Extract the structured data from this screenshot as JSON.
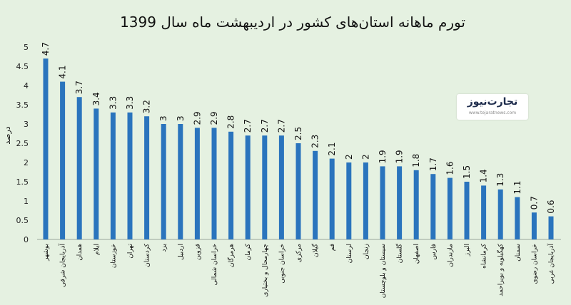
{
  "colors": {
    "background": "#e5f1e1",
    "bar": "#2a74bd",
    "text": "#111111",
    "brand_accent": "#e23a3a"
  },
  "logo": {
    "name": "تجارت‌نیوز",
    "url": "www.tejaratnews.com"
  },
  "chart_data": {
    "type": "bar",
    "title": "تورم ماهانه استان‌های کشور در اردیبهشت ماه سال 1399",
    "xlabel": "",
    "ylabel": "درصد",
    "ylim": [
      0,
      5
    ],
    "yticks": [
      "0",
      "0.5",
      "1",
      "1.5",
      "2",
      "2.5",
      "3",
      "3.5",
      "4",
      "4.5",
      "5"
    ],
    "grid": false,
    "legend": "none",
    "categories": [
      "بوشهر",
      "آذربایجان شرقی",
      "همدان",
      "ایلام",
      "خوزستان",
      "تهران",
      "کردستان",
      "یزد",
      "اردبیل",
      "قزوین",
      "خراسان شمالی",
      "هرمزگان",
      "کرمان",
      "چهارمحال و بختیاری",
      "خراسان جنوبی",
      "مرکزی",
      "گیلان",
      "قم",
      "لرستان",
      "زنجان",
      "سیستان و بلوچستان",
      "گلستان",
      "اصفهان",
      "فارس",
      "مازندران",
      "البرز",
      "کرمانشاه",
      "کهگیلویه و بویراحمد",
      "سمنان",
      "خراسان رضوی",
      "آذربایجان غربی"
    ],
    "value_labels": [
      "4.7",
      "4.1",
      "3.7",
      "3.4",
      "3.3",
      "3.3",
      "3.2",
      "3",
      "3",
      "2.9",
      "2.9",
      "2.8",
      "2.7",
      "2.7",
      "2.7",
      "2.5",
      "2.3",
      "2.1",
      "2",
      "2",
      "1.9",
      "1.9",
      "1.8",
      "1.7",
      "1.6",
      "1.5",
      "1.4",
      "1.3",
      "1.1",
      "0.7",
      "0.6"
    ],
    "values": [
      4.7,
      4.1,
      3.7,
      3.4,
      3.3,
      3.3,
      3.2,
      3,
      3,
      2.9,
      2.9,
      2.8,
      2.7,
      2.7,
      2.7,
      2.5,
      2.3,
      2.1,
      2,
      2,
      1.9,
      1.9,
      1.8,
      1.7,
      1.6,
      1.5,
      1.4,
      1.3,
      1.1,
      0.7,
      0.6
    ]
  }
}
